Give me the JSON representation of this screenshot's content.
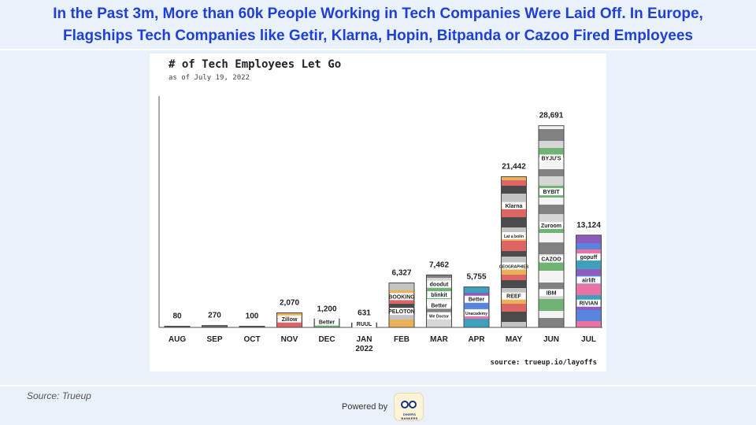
{
  "slide": {
    "headline_line1": "In the Past 3m, More than 60k People Working in Tech Companies Were Laid Off. In Europe,",
    "headline_line2": "Flagships Tech Companies like Getir, Klarna, Hopin, Bitpanda or Cazoo Fired Employees",
    "source_note": "Source: Trueup",
    "powered_by": "Powered by",
    "logo_caption": "DINERS BANKERS"
  },
  "colors": {
    "headline": "#1f3fd6",
    "bar_outline": "#4a4a4a",
    "background": "#e9f2fa"
  },
  "chart_data": {
    "type": "bar",
    "title": "# of Tech Employees Let Go",
    "subtitle": "as of July 19, 2022",
    "source": "source: trueup.io/layoffs",
    "categories": [
      {
        "month": "AUG",
        "year": ""
      },
      {
        "month": "SEP",
        "year": ""
      },
      {
        "month": "OCT",
        "year": ""
      },
      {
        "month": "NOV",
        "year": ""
      },
      {
        "month": "DEC",
        "year": ""
      },
      {
        "month": "JAN",
        "year": "2022"
      },
      {
        "month": "FEB",
        "year": ""
      },
      {
        "month": "MAR",
        "year": ""
      },
      {
        "month": "APR",
        "year": ""
      },
      {
        "month": "MAY",
        "year": ""
      },
      {
        "month": "JUN",
        "year": ""
      },
      {
        "month": "JUL",
        "year": ""
      }
    ],
    "values": [
      80,
      270,
      100,
      2070,
      1200,
      631,
      6327,
      7462,
      5755,
      21442,
      28691,
      13124
    ],
    "value_labels": [
      "80",
      "270",
      "100",
      "2,070",
      "1,200",
      "631",
      "6,327",
      "7,462",
      "5,755",
      "21,442",
      "28,691",
      "13,124"
    ],
    "ylim": [
      0,
      30000
    ],
    "grid": false,
    "legend": "none",
    "logo_texts": {
      "NOV": [
        "Zillow"
      ],
      "DEC": [
        "Better"
      ],
      "JAN": [
        "RUUL"
      ],
      "FEB": [
        "BOOKING",
        "PELOTON"
      ],
      "MAR": [
        "doodut",
        "blinkit",
        "Better",
        "We Doctor"
      ],
      "APR": [
        "Better",
        "Unacademy"
      ],
      "MAY": [
        "Klarna",
        "Lat a bolin",
        "GEOGRAPHIES",
        "REEF"
      ],
      "JUN": [
        "BYJU'S",
        "BYBIT",
        "Zuroom",
        "CAZOO",
        "IBM"
      ],
      "JUL": [
        "gopuff",
        "airlift",
        "RIVIAN"
      ]
    }
  }
}
